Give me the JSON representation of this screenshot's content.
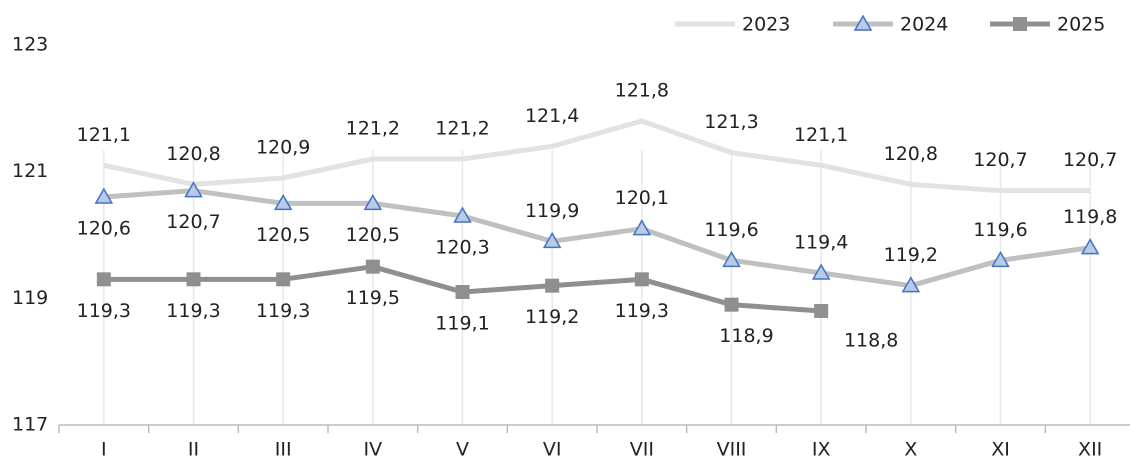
{
  "chart_data": {
    "type": "line",
    "categories": [
      "I",
      "II",
      "III",
      "IV",
      "V",
      "VI",
      "VII",
      "VIII",
      "IX",
      "X",
      "XI",
      "XII"
    ],
    "ylim": [
      117,
      123
    ],
    "yticks": [
      117,
      119,
      121,
      123
    ],
    "legend": "top-right",
    "series": [
      {
        "name": "2023",
        "color": "#e2e2e2",
        "marker": "none",
        "values": [
          121.1,
          120.8,
          120.9,
          121.2,
          121.2,
          121.4,
          121.8,
          121.3,
          121.1,
          120.8,
          120.7,
          120.7
        ],
        "value_labels": [
          "121,1",
          "120,8",
          "120,9",
          "121,2",
          "121,2",
          "121,4",
          "121,8",
          "121,3",
          "121,1",
          "120,8",
          "120,7",
          "120,7"
        ]
      },
      {
        "name": "2024",
        "color": "#c0c0c0",
        "marker": "triangle",
        "marker_color": "#4472c4",
        "values": [
          120.6,
          120.7,
          120.5,
          120.5,
          120.3,
          119.9,
          120.1,
          119.6,
          119.4,
          119.2,
          119.6,
          119.8
        ],
        "value_labels": [
          "120,6",
          "120,7",
          "120,5",
          "120,5",
          "120,3",
          "119,9",
          "120,1",
          "119,6",
          "119,4",
          "119,2",
          "119,6",
          "119,8"
        ]
      },
      {
        "name": "2025",
        "color": "#8f8f8f",
        "marker": "square",
        "values": [
          119.3,
          119.3,
          119.3,
          119.5,
          119.1,
          119.2,
          119.3,
          118.9,
          118.8,
          null,
          null,
          null
        ],
        "value_labels": [
          "119,3",
          "119,3",
          "119,3",
          "119,5",
          "119,1",
          "119,2",
          "119,3",
          "118,9",
          "118,8",
          null,
          null,
          null
        ]
      }
    ]
  }
}
